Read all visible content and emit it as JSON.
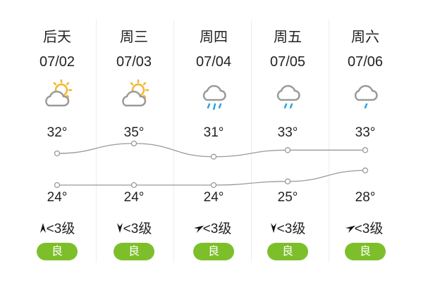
{
  "days": [
    {
      "day": "后天",
      "date": "07/02",
      "icon": "partly-cloudy-icon",
      "high": "32°",
      "low": "24°",
      "wind_dir": "north-arrow-icon",
      "wind": "<3级",
      "aqi": "良",
      "high_val": 32,
      "low_val": 24
    },
    {
      "day": "周三",
      "date": "07/03",
      "icon": "partly-cloudy-icon",
      "high": "35°",
      "low": "24°",
      "wind_dir": "south-arrow-icon",
      "wind": "<3级",
      "aqi": "良",
      "high_val": 35,
      "low_val": 24
    },
    {
      "day": "周四",
      "date": "07/04",
      "icon": "heavy-rain-icon",
      "high": "31°",
      "low": "24°",
      "wind_dir": "northeast-arrow-icon",
      "wind": "<3级",
      "aqi": "良",
      "high_val": 31,
      "low_val": 24
    },
    {
      "day": "周五",
      "date": "07/05",
      "icon": "moderate-rain-icon",
      "high": "33°",
      "low": "25°",
      "wind_dir": "south-arrow-icon",
      "wind": "<3级",
      "aqi": "良",
      "high_val": 33,
      "low_val": 25
    },
    {
      "day": "周六",
      "date": "07/06",
      "icon": "light-rain-icon",
      "high": "33°",
      "low": "28°",
      "wind_dir": "northeast-arrow-icon",
      "wind": "<3级",
      "aqi": "良",
      "high_val": 33,
      "low_val": 28
    }
  ],
  "colors": {
    "aqi_good": "#7cbf2b",
    "sun": "#f2b632",
    "cloud": "#9a9a9a",
    "rain": "#2fa3de",
    "line": "#999999"
  }
}
